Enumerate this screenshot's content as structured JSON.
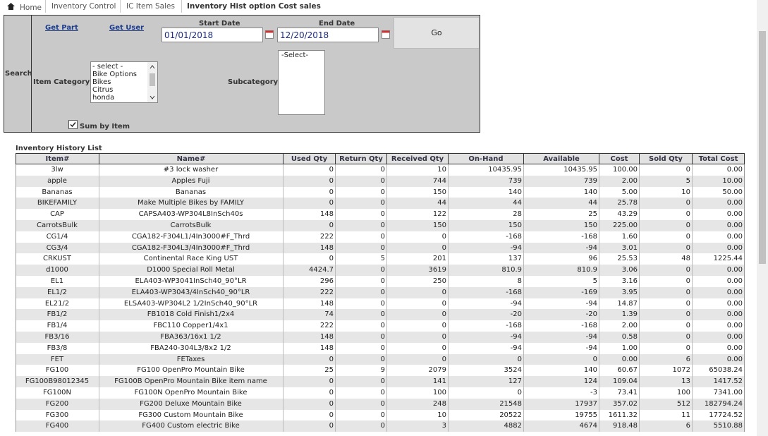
{
  "breadcrumb": [
    "Home",
    "Inventory Control",
    "IC Item Sales",
    "Inventory Hist option Cost sales"
  ],
  "search": {
    "label": "Search",
    "get_part": "Get Part",
    "get_user": "Get User",
    "start_date_label": "Start Date",
    "start_date": "01/01/2018",
    "end_date_label": "End Date",
    "end_date": "12/20/2018",
    "go": "Go",
    "item_category_label": "Item Category:",
    "item_categories": [
      "- select -",
      "Bike Options",
      "Bikes",
      "Citrus",
      "honda"
    ],
    "subcategory_label": "Subcategory:",
    "subcategories": [
      "-Select-"
    ],
    "sum_by_item": "Sum by Item"
  },
  "table": {
    "title": "Inventory History List",
    "columns": [
      "Item#",
      "Name#",
      "Used Qty",
      "Return Qty",
      "Received Qty",
      "On-Hand",
      "Available",
      "Cost",
      "Sold Qty",
      "Total Cost"
    ],
    "rows": [
      [
        "3lw",
        "#3 lock washer",
        "0",
        "0",
        "10",
        "10435.95",
        "10435.95",
        "100.00",
        "0",
        "0.00"
      ],
      [
        "apple",
        "Apples Fuji",
        "0",
        "0",
        "744",
        "739",
        "739",
        "2.00",
        "5",
        "10.00"
      ],
      [
        "Bananas",
        "Bananas",
        "0",
        "0",
        "150",
        "140",
        "140",
        "5.00",
        "10",
        "50.00"
      ],
      [
        "BIKEFAMILY",
        "Make Multiple Bikes by FAMILY",
        "0",
        "0",
        "44",
        "44",
        "44",
        "25.78",
        "0",
        "0.00"
      ],
      [
        "CAP",
        "CAPSA403-WP304L8InSch40s",
        "148",
        "0",
        "122",
        "28",
        "25",
        "43.29",
        "0",
        "0.00"
      ],
      [
        "CarrotsBulk",
        "CarrotsBulk",
        "0",
        "0",
        "150",
        "150",
        "150",
        "225.00",
        "0",
        "0.00"
      ],
      [
        "CG1/4",
        "CGA182-F304L1/4In3000#F_Thrd",
        "222",
        "0",
        "0",
        "-168",
        "-168",
        "1.60",
        "0",
        "0.00"
      ],
      [
        "CG3/4",
        "CGA182-F304L3/4In3000#F_Thrd",
        "148",
        "0",
        "0",
        "-94",
        "-94",
        "3.01",
        "0",
        "0.00"
      ],
      [
        "CRKUST",
        "Continental Race King UST",
        "0",
        "5",
        "201",
        "137",
        "96",
        "25.53",
        "48",
        "1225.44"
      ],
      [
        "d1000",
        "D1000 Special Roll Metal",
        "4424.7",
        "0",
        "3619",
        "810.9",
        "810.9",
        "3.06",
        "0",
        "0.00"
      ],
      [
        "EL1",
        "ELA403-WP3041InSch40_90°LR",
        "296",
        "0",
        "250",
        "8",
        "5",
        "3.16",
        "0",
        "0.00"
      ],
      [
        "EL1/2",
        "ELA403-WP3043/4InSch40_90°LR",
        "222",
        "0",
        "0",
        "-168",
        "-169",
        "3.95",
        "0",
        "0.00"
      ],
      [
        "EL21/2",
        "ELSA403-WP304L2 1/2InSch40_90°LR",
        "148",
        "0",
        "0",
        "-94",
        "-94",
        "14.87",
        "0",
        "0.00"
      ],
      [
        "FB1/2",
        "FB1018 Cold Finish1/2x4",
        "74",
        "0",
        "0",
        "-20",
        "-20",
        "1.39",
        "0",
        "0.00"
      ],
      [
        "FB1/4",
        "FBC110 Copper1/4x1",
        "222",
        "0",
        "0",
        "-168",
        "-168",
        "2.00",
        "0",
        "0.00"
      ],
      [
        "FB3/16",
        "FBA363/16x1 1/2",
        "148",
        "0",
        "0",
        "-94",
        "-94",
        "0.58",
        "0",
        "0.00"
      ],
      [
        "FB3/8",
        "FBA240-304L3/8x2 1/2",
        "148",
        "0",
        "0",
        "-94",
        "-94",
        "1.00",
        "0",
        "0.00"
      ],
      [
        "FET",
        "FETaxes",
        "0",
        "0",
        "0",
        "0",
        "0",
        "0.00",
        "6",
        "0.00"
      ],
      [
        "FG100",
        "FG100 OpenPro Mountain Bike",
        "25",
        "9",
        "2079",
        "3524",
        "140",
        "60.67",
        "1072",
        "65038.24"
      ],
      [
        "FG100B98012345",
        "FG100B OpenPro Mountain Bike item name",
        "0",
        "0",
        "141",
        "127",
        "124",
        "109.04",
        "13",
        "1417.52"
      ],
      [
        "FG100N",
        "FG100N OpenPro Mountain Bike",
        "0",
        "0",
        "100",
        "0",
        "-3",
        "73.41",
        "100",
        "7341.00"
      ],
      [
        "FG200",
        "FG200 Deluxe Mountain Bike",
        "0",
        "0",
        "248",
        "21548",
        "17937",
        "357.02",
        "512",
        "182794.24"
      ],
      [
        "FG300",
        "FG300 Custom Mountain Bike",
        "0",
        "0",
        "10",
        "20522",
        "19755",
        "1611.32",
        "11",
        "17724.52"
      ],
      [
        "FG400",
        "FG400 Custom electric Bike",
        "0",
        "0",
        "3",
        "4882",
        "4674",
        "918.48",
        "6",
        "5510.88"
      ]
    ]
  }
}
